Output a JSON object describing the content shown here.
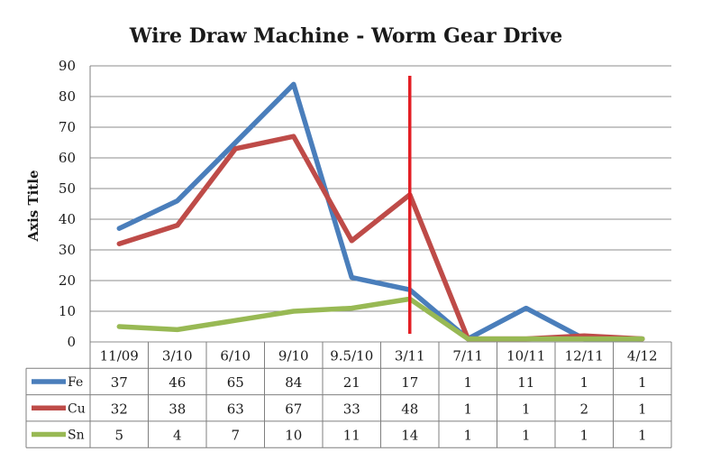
{
  "chart_data": {
    "type": "line",
    "title": "Wire Draw Machine - Worm Gear Drive",
    "ylabel": "Axis Title",
    "xlabel": "",
    "ylim": [
      0,
      90
    ],
    "yticks": [
      0,
      10,
      20,
      30,
      40,
      50,
      60,
      70,
      80,
      90
    ],
    "grid": true,
    "legend": "data table",
    "categories": [
      "11/09",
      "3/10",
      "6/10",
      "9/10",
      "9.5/10",
      "3/11",
      "7/11",
      "10/11",
      "12/11",
      "4/12"
    ],
    "series": [
      {
        "name": "Fe",
        "color": "#4a7ebb",
        "values": [
          37,
          46,
          65,
          84,
          21,
          17,
          1,
          11,
          1,
          1
        ]
      },
      {
        "name": "Cu",
        "color": "#be4b48",
        "values": [
          32,
          38,
          63,
          67,
          33,
          48,
          1,
          1,
          2,
          1
        ]
      },
      {
        "name": "Sn",
        "color": "#98b954",
        "values": [
          5,
          4,
          7,
          10,
          11,
          14,
          1,
          1,
          1,
          1
        ]
      }
    ],
    "annotations": [
      {
        "type": "vertical-line",
        "category": "3/11",
        "color": "#e31e24"
      }
    ]
  }
}
